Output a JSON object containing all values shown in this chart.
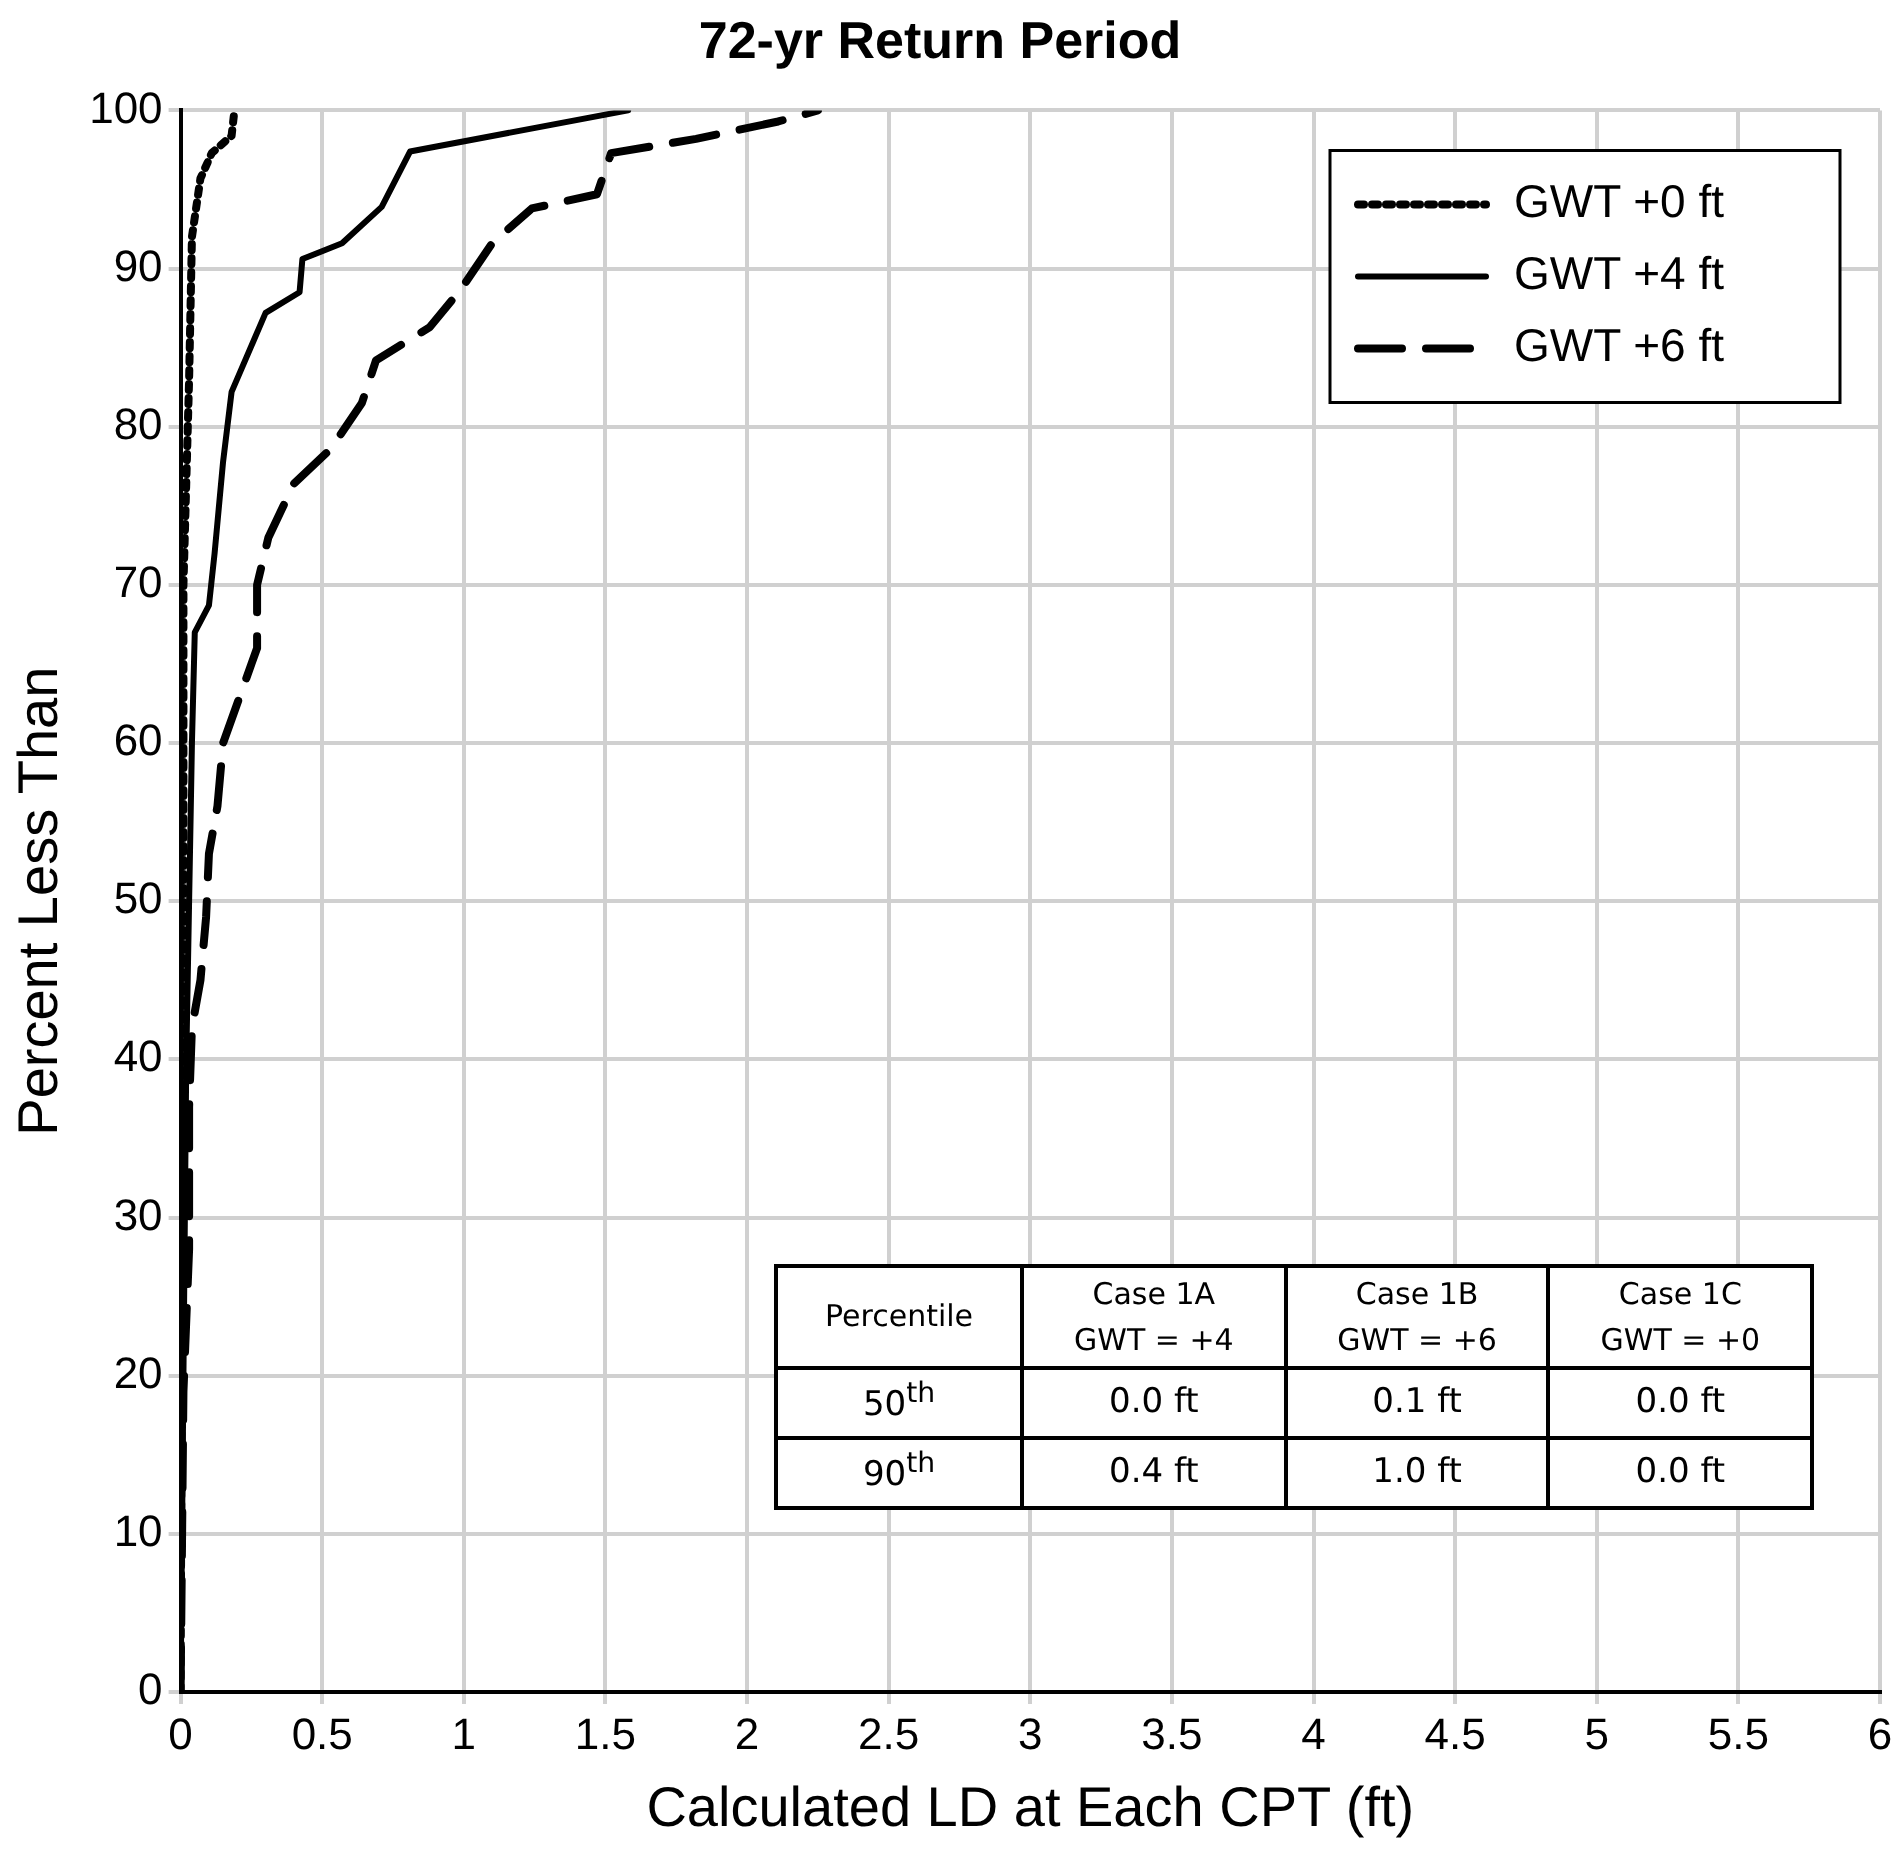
{
  "chart_data": {
    "type": "line",
    "title": "72-yr Return Period",
    "xlabel": "Calculated LD at Each CPT (ft)",
    "ylabel": "Percent Less Than",
    "xlim": [
      0,
      6
    ],
    "xticks": [
      0,
      0.5,
      1,
      1.5,
      2,
      2.5,
      3,
      3.5,
      4,
      4.5,
      5,
      5.5,
      6
    ],
    "ylim": [
      0,
      100
    ],
    "yticks": [
      0,
      10,
      20,
      30,
      40,
      50,
      60,
      70,
      80,
      90,
      100
    ],
    "grid": true,
    "legend": "top right",
    "marker": "none",
    "series": [
      {
        "name": "GWT +0 ft",
        "color": "#000000",
        "line_style": "dotted",
        "x": [
          0,
          0.01,
          0.01,
          0.03,
          0.04,
          0.07,
          0.11,
          0.18,
          0.19
        ],
        "values": [
          0,
          50,
          70,
          83,
          92,
          95.7,
          97.3,
          98.4,
          100
        ]
      },
      {
        "name": "GWT +4 ft",
        "color": "#000000",
        "line_style": "solid",
        "x": [
          0,
          0.01,
          0.02,
          0.04,
          0.05,
          0.1,
          0.12,
          0.15,
          0.18,
          0.3,
          0.42,
          0.43,
          0.57,
          0.71,
          0.81,
          1.58
        ],
        "values": [
          0,
          20,
          40,
          60,
          67,
          68.7,
          72,
          77.8,
          82.2,
          87.2,
          88.5,
          90.6,
          91.6,
          93.9,
          97.4,
          100
        ]
      },
      {
        "name": "GWT +6 ft",
        "color": "#000000",
        "line_style": "dashed",
        "x": [
          0,
          0.01,
          0.03,
          0.03,
          0.04,
          0.07,
          0.09,
          0.1,
          0.13,
          0.15,
          0.21,
          0.27,
          0.27,
          0.31,
          0.4,
          0.53,
          0.64,
          0.69,
          0.88,
          0.99,
          1.1,
          1.24,
          1.47,
          1.52,
          1.82,
          2.11,
          2.25
        ],
        "values": [
          0,
          19,
          28,
          37,
          42,
          45,
          49,
          53,
          56,
          60,
          63,
          66,
          70,
          73,
          76.4,
          78.6,
          81.5,
          84.2,
          86.3,
          88.7,
          91.6,
          93.8,
          94.7,
          97.3,
          98.2,
          99.3,
          100
        ]
      }
    ],
    "annotations": [
      "Percentile",
      "Case 1A\nGWT = +4",
      "Case 1B\nGWT = +6",
      "Case 1C\nGWT = +0",
      "50$^{th}$",
      "0.0 ft",
      "0.1 ft",
      "0.0 ft",
      "90$^{th}$",
      "0.4 ft",
      "1.0 ft",
      "0.0 ft"
    ]
  }
}
